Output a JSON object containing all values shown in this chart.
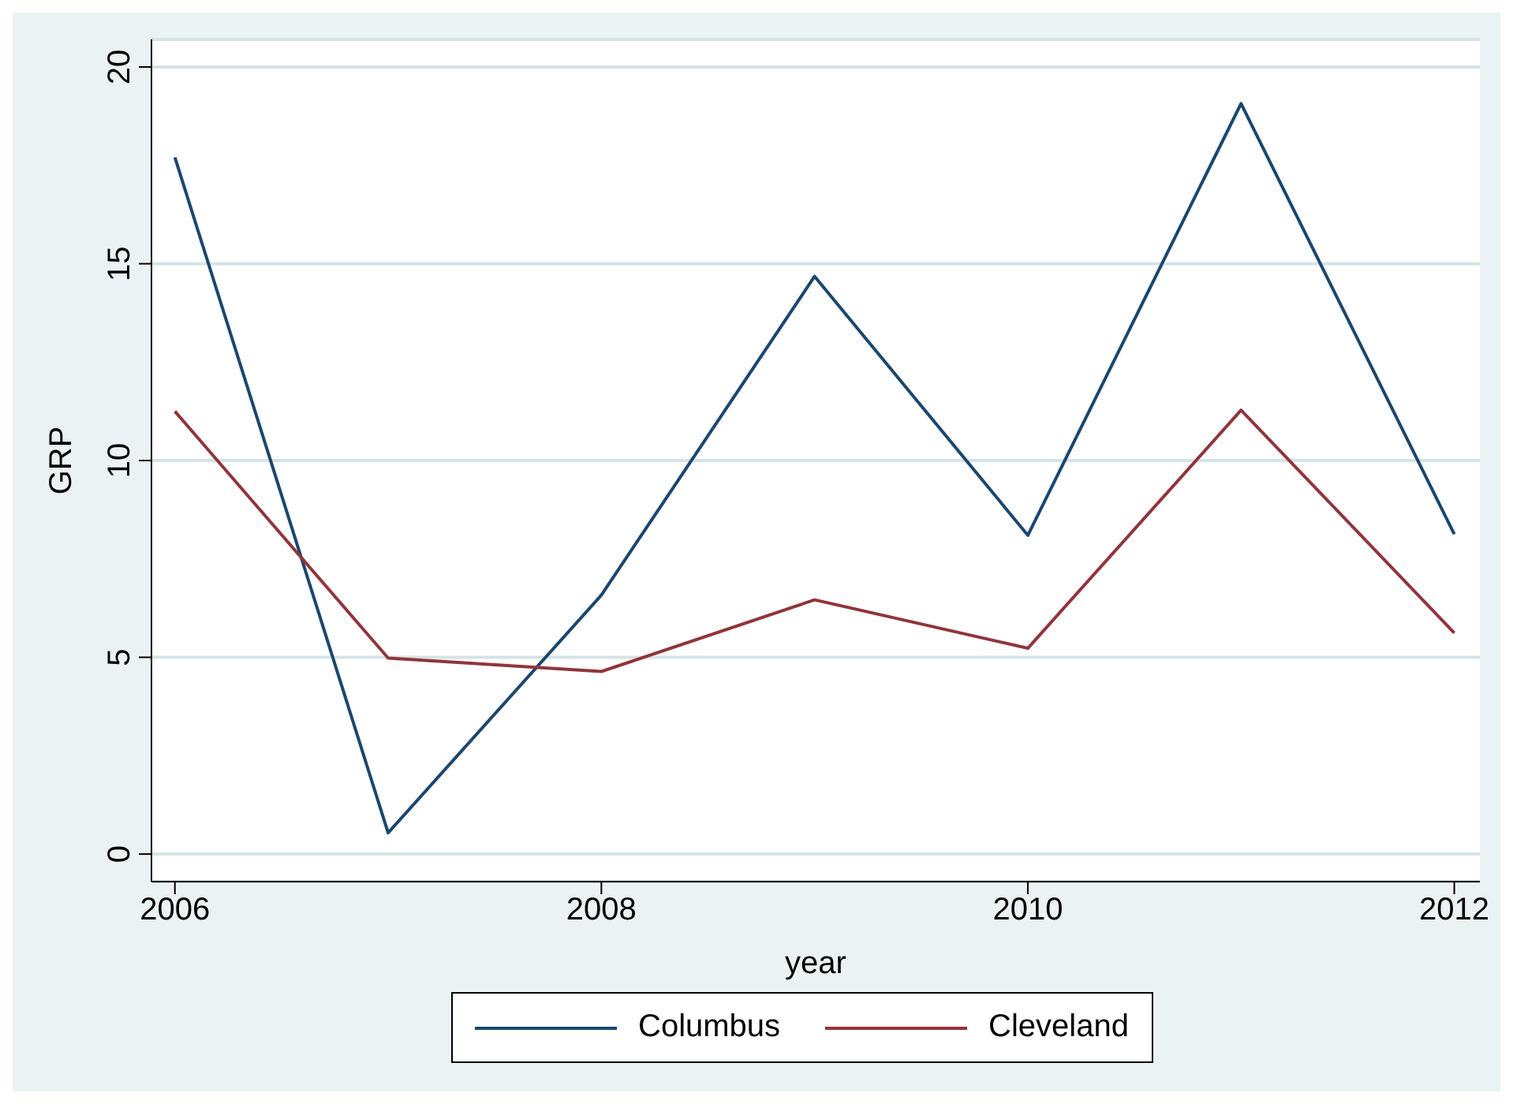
{
  "chart_data": {
    "type": "line",
    "xlabel": "year",
    "ylabel": "GRP",
    "x": [
      2006,
      2007,
      2008,
      2009,
      2010,
      2011,
      2012
    ],
    "series": [
      {
        "name": "Columbus",
        "color": "#1a476f",
        "values": [
          17.7,
          0.54,
          6.58,
          14.68,
          8.1,
          19.07,
          8.13
        ]
      },
      {
        "name": "Cleveland",
        "color": "#90353b",
        "values": [
          11.25,
          4.98,
          4.64,
          6.46,
          5.23,
          11.28,
          5.62
        ]
      }
    ],
    "xlim": [
      2005.89,
      2012.12
    ],
    "xticks": [
      2006,
      2008,
      2010,
      2012
    ],
    "ylim": [
      -0.7,
      20.7
    ],
    "yticks": [
      0,
      5,
      10,
      15,
      20
    ],
    "grid": "y",
    "legend": "bottom",
    "marker": "none",
    "line_style": "solid"
  }
}
